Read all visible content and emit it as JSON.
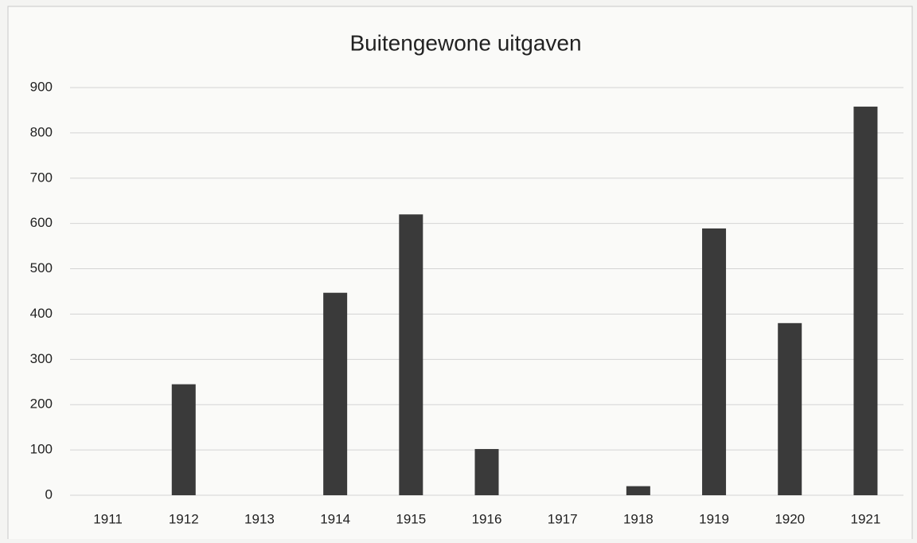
{
  "chart_data": {
    "type": "bar",
    "title": "Buitengewone uitgaven",
    "categories": [
      "1911",
      "1912",
      "1913",
      "1914",
      "1915",
      "1916",
      "1917",
      "1918",
      "1919",
      "1920",
      "1921"
    ],
    "values": [
      0,
      245,
      0,
      447,
      620,
      102,
      0,
      20,
      589,
      380,
      858
    ],
    "color": "#3a3a3a",
    "ylim": [
      0,
      900
    ],
    "yticks": [
      0,
      100,
      200,
      300,
      400,
      500,
      600,
      700,
      800,
      900
    ],
    "grid": true
  }
}
